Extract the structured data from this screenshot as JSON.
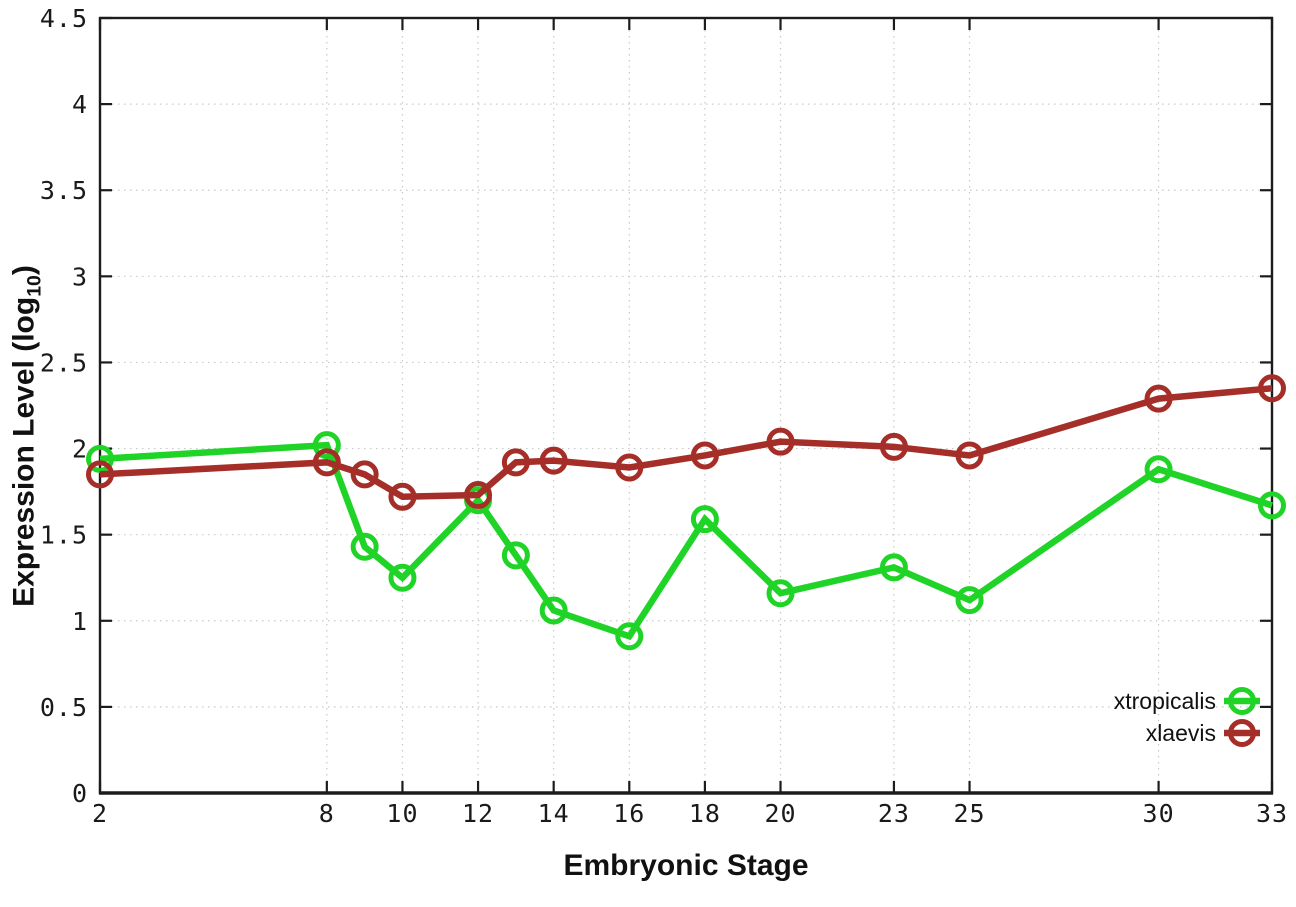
{
  "style": {
    "background": "#ffffff",
    "axis_color": "#1c1c1c",
    "grid_color": "#c9c9c9",
    "tick_label_color": "#1a1a1a"
  },
  "axes": {
    "x_title": "Embryonic Stage",
    "y_title_main": "Expression Level (log",
    "y_title_sub": "10",
    "y_title_close": ")"
  },
  "chart_data": {
    "type": "line",
    "title": "",
    "xlabel": "Embryonic Stage",
    "ylabel": "Expression Level (log10)",
    "xlim": [
      2,
      33
    ],
    "ylim": [
      0,
      4.5
    ],
    "x_tick_labels": [
      2,
      8,
      10,
      12,
      14,
      16,
      18,
      20,
      23,
      25,
      30,
      33
    ],
    "y_ticks": [
      0,
      0.5,
      1,
      1.5,
      2,
      2.5,
      3,
      3.5,
      4,
      4.5
    ],
    "grid": "dotted",
    "legend_position": "bottom-right-inside",
    "x": [
      2,
      8,
      9,
      10,
      12,
      13,
      14,
      16,
      18,
      20,
      23,
      25,
      30,
      33
    ],
    "series": [
      {
        "name": "xtropicalis",
        "color": "#1fd427",
        "marker": "open-circle",
        "values": [
          1.94,
          2.02,
          1.43,
          1.25,
          1.7,
          1.38,
          1.06,
          0.91,
          1.59,
          1.16,
          1.31,
          1.12,
          1.88,
          1.67
        ]
      },
      {
        "name": "xlaevis",
        "color": "#a52f28",
        "marker": "open-circle",
        "values": [
          1.85,
          1.92,
          1.85,
          1.72,
          1.73,
          1.92,
          1.93,
          1.89,
          1.96,
          2.04,
          2.01,
          1.96,
          2.29,
          2.35
        ]
      }
    ]
  }
}
